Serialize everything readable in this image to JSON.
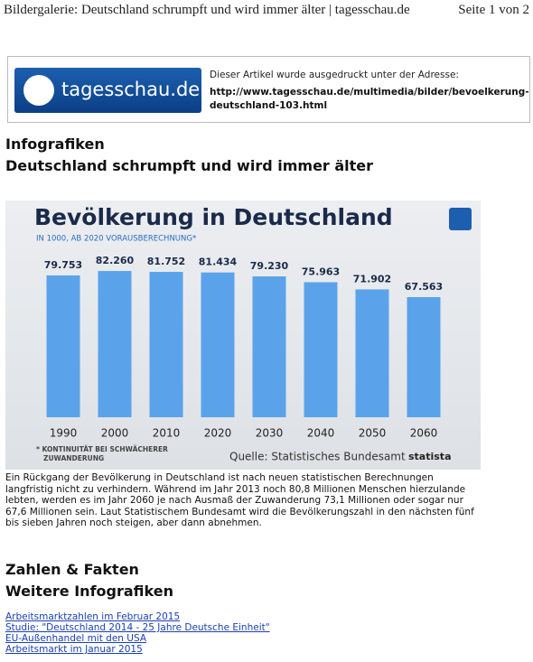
{
  "header": {
    "title": "Bildergalerie: Deutschland schrumpft und wird immer älter | tagesschau.de",
    "page": "Seite 1 von 2"
  },
  "banner": {
    "logo": "tagesschau.de",
    "note": "Dieser Artikel wurde ausgedruckt unter der Adresse:",
    "url": [
      "http://www.tagesschau.de/multimedia/bilder/bevoelkerung-",
      "deutschland-103.html"
    ]
  },
  "section": "Infografiken",
  "headline": "Deutschland schrumpft und wird immer älter",
  "chart_data": {
    "type": "bar",
    "title": "Bevölkerung in Deutschland",
    "subtitle": "IN 1000, AB 2020 VORAUSBERECHNUNG*",
    "categories": [
      "1990",
      "2000",
      "2010",
      "2020",
      "2030",
      "2040",
      "2050",
      "2060"
    ],
    "values": [
      79753,
      82260,
      81752,
      81434,
      79230,
      75963,
      71902,
      67563
    ],
    "value_labels": [
      "79.753",
      "82.260",
      "81.752",
      "81.434",
      "79.230",
      "75.963",
      "71.902",
      "67.563"
    ],
    "color": "#5aa3ea",
    "footnote": [
      "* KONTINUITÄT BEI SCHWÄCHERER",
      "ZUWANDERUNG"
    ],
    "source": "Quelle: Statistisches Bundesamt",
    "brand": "statista"
  },
  "body": "Ein Rückgang der Bevölkerung in Deutschland ist nach neuen statistischen Berechnungen langfristig nicht zu verhindern. Während im Jahr 2013 noch 80,8 Millionen Menschen hierzulande lebten, werden es im Jahr 2060 je nach Ausmaß der Zuwanderung 73,1 Millionen oder sogar nur 67,6 Millionen sein. Laut Statistischem Bundesamt wird die Bevölkerungszahl in den nächsten fünf bis sieben Jahren noch steigen, aber dann abnehmen.",
  "facts": "Zahlen & Fakten",
  "more": "Weitere Infografiken",
  "links": [
    "Arbeitsmarktzahlen im Februar 2015",
    "Studie: \"Deutschland 2014 - 25 Jahre Deutsche Einheit\"",
    "EU-Außenhandel mit den USA",
    "Arbeitsmarkt im Januar 2015"
  ]
}
